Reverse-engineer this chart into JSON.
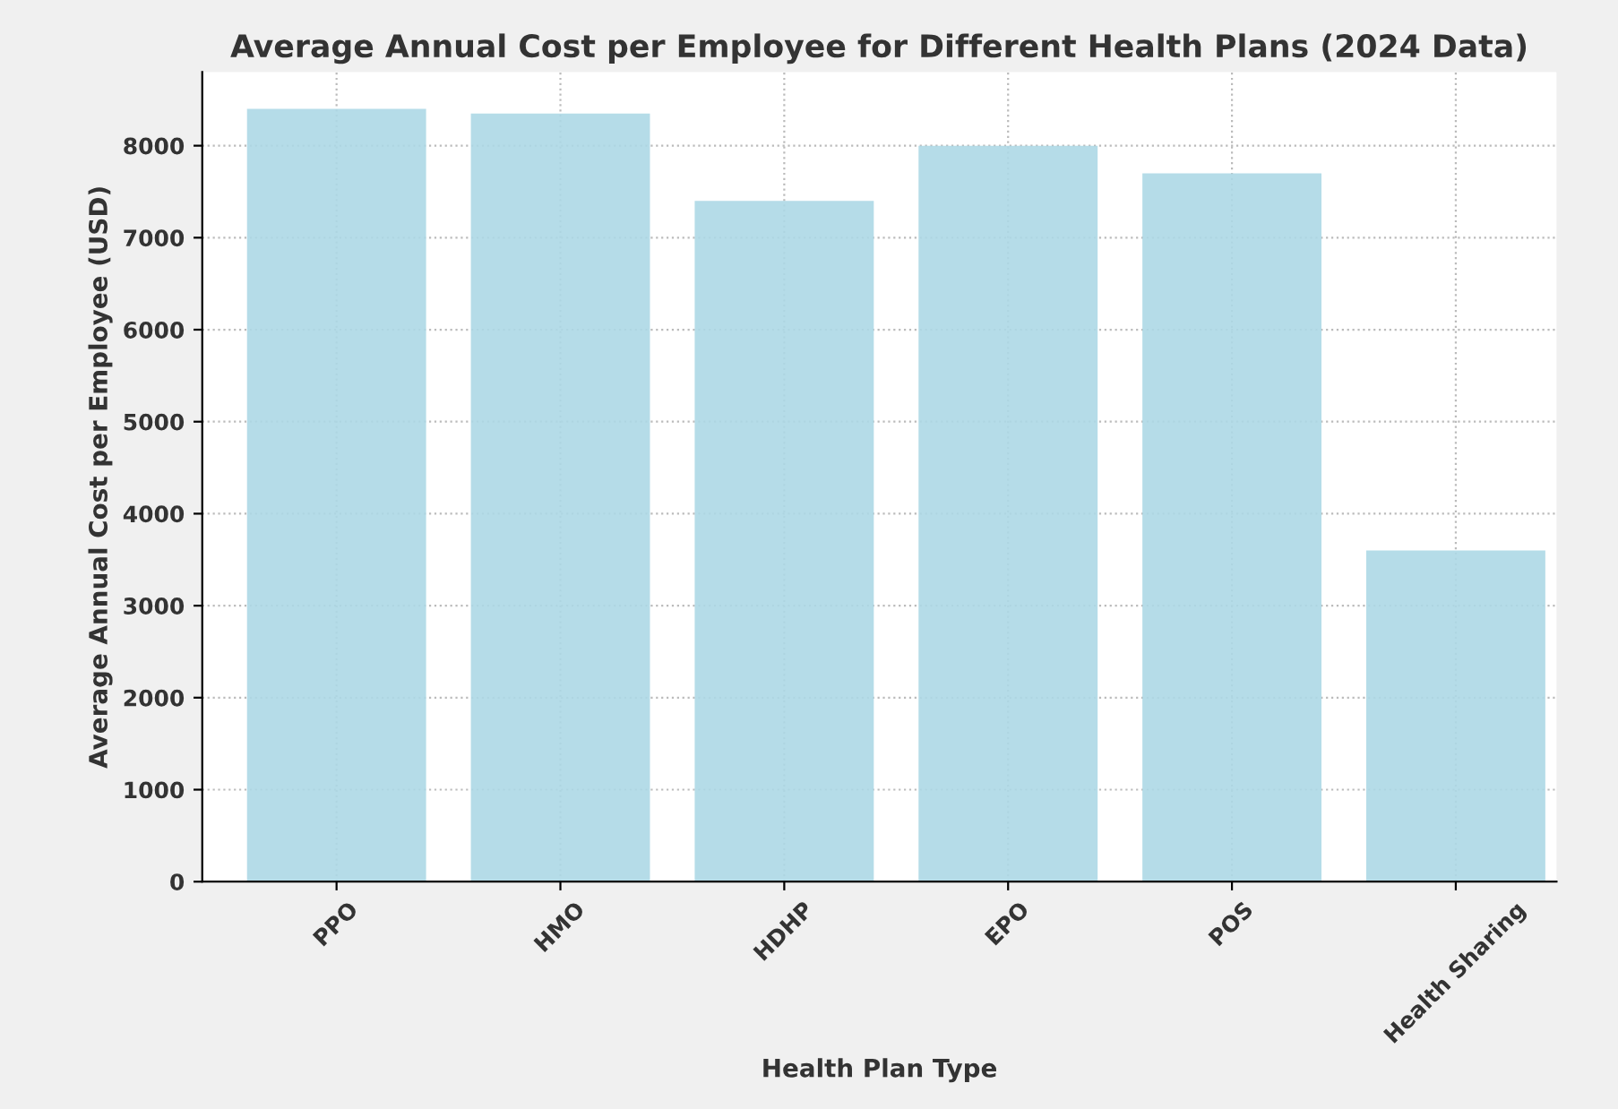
{
  "chart_data": {
    "type": "bar",
    "title": "Average Annual Cost per Employee for Different Health Plans (2024 Data)",
    "xlabel": "Health Plan Type",
    "ylabel": "Average Annual Cost per Employee (USD)",
    "categories": [
      "PPO",
      "HMO",
      "HDHP",
      "EPO",
      "POS",
      "Health Sharing"
    ],
    "values": [
      8400,
      8350,
      7400,
      8000,
      7700,
      3600
    ],
    "color": "#add8e6",
    "ylim": [
      0,
      8800
    ],
    "yticks": [
      0,
      1000,
      2000,
      3000,
      4000,
      5000,
      6000,
      7000,
      8000
    ],
    "grid": true,
    "legend": false
  }
}
